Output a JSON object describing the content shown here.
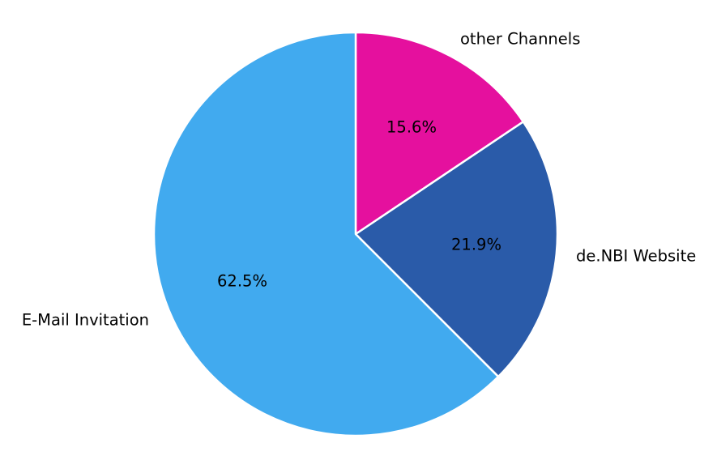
{
  "chart_data": {
    "type": "pie",
    "title": "",
    "labels": [
      "other Channels",
      "de.NBI Website",
      "E-Mail Invitation"
    ],
    "values": [
      15.6,
      21.9,
      62.5
    ],
    "pct_labels": [
      "15.6%",
      "21.9%",
      "62.5%"
    ],
    "colors": [
      "#E5109E",
      "#2A5BA9",
      "#41AAEF"
    ],
    "start_angle_deg": 90,
    "direction": "clockwise",
    "wedge_edge_color": "#FFFFFF",
    "label_color": "#000000",
    "background": "#FFFFFF",
    "legend": "none"
  }
}
